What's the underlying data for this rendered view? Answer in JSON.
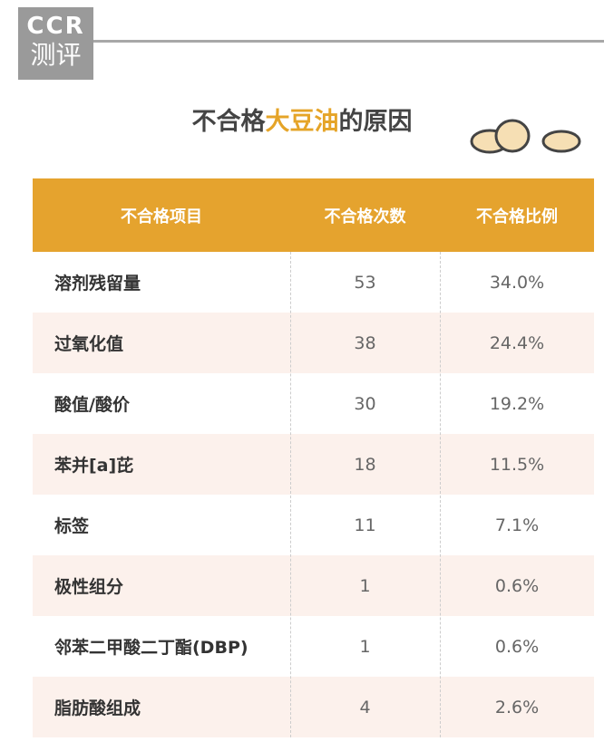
{
  "logo": {
    "brand": "CCR",
    "sub": "测评"
  },
  "header": {
    "title_prefix": "不合格",
    "title_highlight": "大豆油",
    "title_suffix": "的原因"
  },
  "table": {
    "columns": [
      "不合格项目",
      "不合格次数",
      "不合格比例"
    ],
    "rows": [
      [
        "溶剂残留量",
        "53",
        "34.0%"
      ],
      [
        "过氧化值",
        "38",
        "24.4%"
      ],
      [
        "酸值/酸价",
        "30",
        "19.2%"
      ],
      [
        "苯并[a]芘",
        "18",
        "11.5%"
      ],
      [
        "标签",
        "11",
        "7.1%"
      ],
      [
        "极性组分",
        "1",
        "0.6%"
      ],
      [
        "邻苯二甲酸二丁酯(DBP)",
        "1",
        "0.6%"
      ],
      [
        "脂肪酸组成",
        "4",
        "2.6%"
      ]
    ]
  }
}
